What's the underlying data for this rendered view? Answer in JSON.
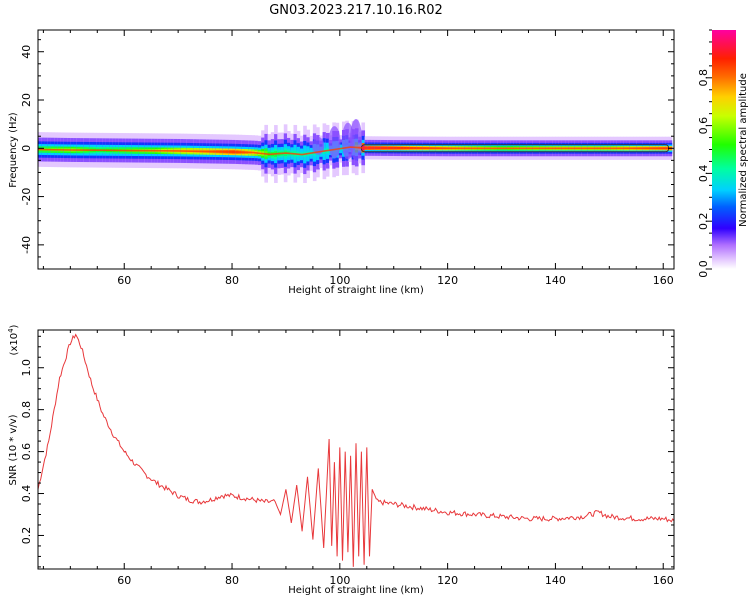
{
  "figure": {
    "title": "GN03.2023.217.10.16.R02"
  },
  "chart_data": [
    {
      "type": "heatmap",
      "name": "spectrogram",
      "xlabel": "Height of straight line (km)",
      "ylabel": "Frequency (Hz)",
      "xlim": [
        44,
        162
      ],
      "ylim": [
        -50,
        49
      ],
      "x_ticks": [
        60,
        80,
        100,
        120,
        140,
        160
      ],
      "x_tick_labels": [
        "60",
        "80",
        "100",
        "120",
        "140",
        "160"
      ],
      "y_ticks": [
        -40,
        -20,
        0,
        20,
        40
      ],
      "y_tick_labels": [
        "-40",
        "-20",
        "0",
        "20",
        "40"
      ],
      "colorbar": {
        "label": "Normalized spectral amplitude",
        "range": [
          0,
          1
        ],
        "ticks": [
          0.0,
          0.2,
          0.4,
          0.6,
          0.8
        ],
        "tick_labels": [
          "0.0",
          "0.2",
          "0.4",
          "0.6",
          "0.8"
        ]
      },
      "ridge": [
        {
          "x": 44,
          "freq": -0.5,
          "amp": 0.55
        },
        {
          "x": 50,
          "freq": -0.7,
          "amp": 0.6
        },
        {
          "x": 55,
          "freq": -0.8,
          "amp": 0.5
        },
        {
          "x": 60,
          "freq": -0.9,
          "amp": 0.55
        },
        {
          "x": 65,
          "freq": -1.0,
          "amp": 0.6
        },
        {
          "x": 70,
          "freq": -1.1,
          "amp": 0.7
        },
        {
          "x": 75,
          "freq": -1.3,
          "amp": 0.75
        },
        {
          "x": 80,
          "freq": -1.5,
          "amp": 0.85
        },
        {
          "x": 84,
          "freq": -1.8,
          "amp": 0.7
        },
        {
          "x": 87,
          "freq": -2.5,
          "amp": 0.5
        },
        {
          "x": 90,
          "freq": -2.0,
          "amp": 0.45
        },
        {
          "x": 93,
          "freq": -2.6,
          "amp": 0.4
        },
        {
          "x": 96,
          "freq": -1.5,
          "amp": 0.4
        },
        {
          "x": 99,
          "freq": -0.5,
          "amp": 0.4
        },
        {
          "x": 102,
          "freq": 0.5,
          "amp": 0.35
        },
        {
          "x": 104,
          "freq": 0.2,
          "amp": 0.95
        },
        {
          "x": 110,
          "freq": 0.1,
          "amp": 0.9
        },
        {
          "x": 120,
          "freq": 0.0,
          "amp": 0.75
        },
        {
          "x": 130,
          "freq": 0.0,
          "amp": 0.6
        },
        {
          "x": 140,
          "freq": 0.0,
          "amp": 0.7
        },
        {
          "x": 150,
          "freq": 0.0,
          "amp": 0.7
        },
        {
          "x": 161,
          "freq": 0.0,
          "amp": 0.85
        }
      ]
    },
    {
      "type": "line",
      "name": "snr",
      "xlabel": "Height of straight line (km)",
      "ylabel": "SNR (10 * v/v)",
      "y_multiplier_label": "(x10",
      "y_multiplier_exp": "4",
      "y_multiplier_close": ")",
      "xlim": [
        44,
        162
      ],
      "ylim": [
        0.04,
        1.18
      ],
      "x_ticks": [
        60,
        80,
        100,
        120,
        140,
        160
      ],
      "x_tick_labels": [
        "60",
        "80",
        "100",
        "120",
        "140",
        "160"
      ],
      "y_ticks": [
        0.2,
        0.4,
        0.6,
        0.8,
        1.0
      ],
      "y_tick_labels": [
        "0.2",
        "0.4",
        "0.6",
        "0.8",
        "1.0"
      ],
      "color": "#e8383b",
      "series": [
        {
          "x": [
            44,
            46,
            48,
            50,
            51,
            52,
            54,
            56,
            58,
            60,
            62,
            64,
            66,
            68,
            70,
            72,
            74,
            76,
            78,
            80,
            82,
            84,
            86,
            88,
            89,
            90,
            91,
            92,
            93,
            94,
            95,
            96,
            97,
            98,
            98.5,
            99,
            99.5,
            100,
            100.5,
            101,
            101.5,
            102,
            102.5,
            103,
            103.5,
            104,
            104.5,
            105,
            105.5,
            106,
            107,
            110,
            115,
            120,
            125,
            130,
            135,
            140,
            145,
            148,
            150,
            155,
            160,
            162
          ],
          "y": [
            0.42,
            0.65,
            0.95,
            1.12,
            1.16,
            1.1,
            0.92,
            0.78,
            0.68,
            0.6,
            0.54,
            0.49,
            0.45,
            0.42,
            0.39,
            0.37,
            0.36,
            0.37,
            0.39,
            0.39,
            0.38,
            0.37,
            0.36,
            0.36,
            0.3,
            0.42,
            0.26,
            0.44,
            0.22,
            0.48,
            0.18,
            0.52,
            0.14,
            0.66,
            0.15,
            0.55,
            0.1,
            0.62,
            0.08,
            0.6,
            0.12,
            0.58,
            0.05,
            0.64,
            0.1,
            0.6,
            0.06,
            0.62,
            0.1,
            0.42,
            0.36,
            0.35,
            0.33,
            0.31,
            0.3,
            0.29,
            0.28,
            0.28,
            0.29,
            0.31,
            0.29,
            0.28,
            0.28,
            0.27
          ]
        }
      ]
    }
  ]
}
